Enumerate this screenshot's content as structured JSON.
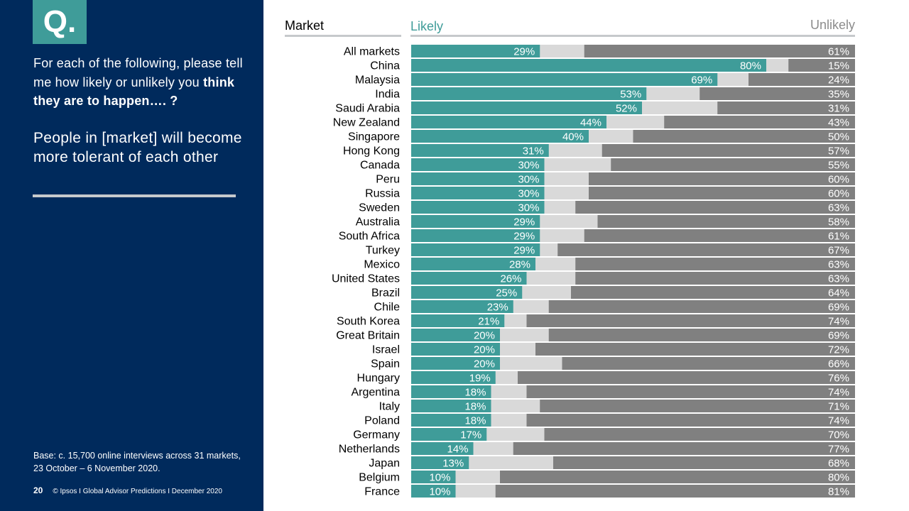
{
  "sidebar": {
    "q_mark": "Q.",
    "question_part1": "For each of the following, please tell me how likely or unlikely you ",
    "question_bold": "think they are to happen…. ?",
    "statement": "People in [market] will become more tolerant of each other",
    "base": "Base: c. 15,700 online interviews across 31 markets,  23 October – 6 November 2020.",
    "page_number": "20",
    "footer": "© Ipsos I Global Advisor Predictions I December 2020"
  },
  "colors": {
    "navy": "#002a5c",
    "likely": "#3f9c99",
    "neutral": "#d9d9d9",
    "unlikely": "#808080"
  },
  "chart_data": {
    "type": "bar",
    "orientation": "horizontal-stacked-100",
    "column_headers": {
      "market": "Market",
      "likely": "Likely",
      "unlikely": "Unlikely"
    },
    "categories": [
      "All markets",
      "China",
      "Malaysia",
      "India",
      "Saudi Arabia",
      "New Zealand",
      "Singapore",
      "Hong Kong",
      "Canada",
      "Peru",
      "Russia",
      "Sweden",
      "Australia",
      "South Africa",
      "Turkey",
      "Mexico",
      "United States",
      "Brazil",
      "Chile",
      "South Korea",
      "Great Britain",
      "Israel",
      "Spain",
      "Hungary",
      "Argentina",
      "Italy",
      "Poland",
      "Germany",
      "Netherlands",
      "Japan",
      "Belgium",
      "France"
    ],
    "series": [
      {
        "name": "Likely",
        "values": [
          29,
          80,
          69,
          53,
          52,
          44,
          40,
          31,
          30,
          30,
          30,
          30,
          29,
          29,
          29,
          28,
          26,
          25,
          23,
          21,
          20,
          20,
          20,
          19,
          18,
          18,
          18,
          17,
          14,
          13,
          10,
          10
        ]
      },
      {
        "name": "Unlikely",
        "values": [
          61,
          15,
          24,
          35,
          31,
          43,
          50,
          57,
          55,
          60,
          60,
          63,
          58,
          61,
          67,
          63,
          63,
          64,
          69,
          74,
          69,
          72,
          66,
          76,
          74,
          71,
          74,
          70,
          77,
          68,
          80,
          81
        ]
      }
    ],
    "xlim": [
      0,
      100
    ]
  }
}
